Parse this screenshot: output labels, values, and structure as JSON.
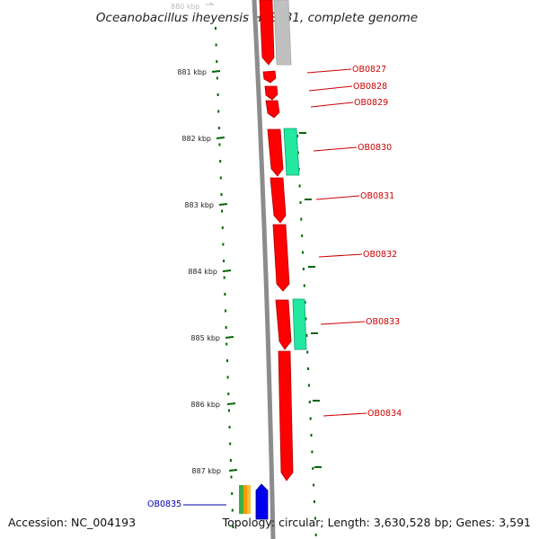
{
  "title": "Oceanobacillus iheyensis HTE831, complete genome",
  "footer": {
    "accession": "Accession: NC_004193",
    "topology": "Topology: circular; Length: 3,630,528 bp; Genes: 3,591"
  },
  "ruler_top_label": "880 kbp",
  "ruler": [
    {
      "label": "881 kbp"
    },
    {
      "label": "882 kbp"
    },
    {
      "label": "883 kbp"
    },
    {
      "label": "884 kbp"
    },
    {
      "label": "885 kbp"
    },
    {
      "label": "886 kbp"
    },
    {
      "label": "887 kbp"
    }
  ],
  "gene_labels": [
    {
      "label": "OB0827",
      "color": "#cc0000"
    },
    {
      "label": "OB0828",
      "color": "#cc0000"
    },
    {
      "label": "OB0829",
      "color": "#cc0000"
    },
    {
      "label": "OB0830",
      "color": "#cc0000"
    },
    {
      "label": "OB0831",
      "color": "#cc0000"
    },
    {
      "label": "OB0832",
      "color": "#cc0000"
    },
    {
      "label": "OB0833",
      "color": "#cc0000"
    },
    {
      "label": "OB0834",
      "color": "#cc0000"
    },
    {
      "label": "OB0835",
      "color": "#0000aa"
    }
  ],
  "colors": {
    "gene_forward": "#ff0000",
    "gene_rna": "#22e8a0",
    "gene_grey": "#bdbdbd",
    "gene_blue": "#0000ee",
    "ruler_tick": "#006600",
    "backbone": "#8c8c8c"
  }
}
